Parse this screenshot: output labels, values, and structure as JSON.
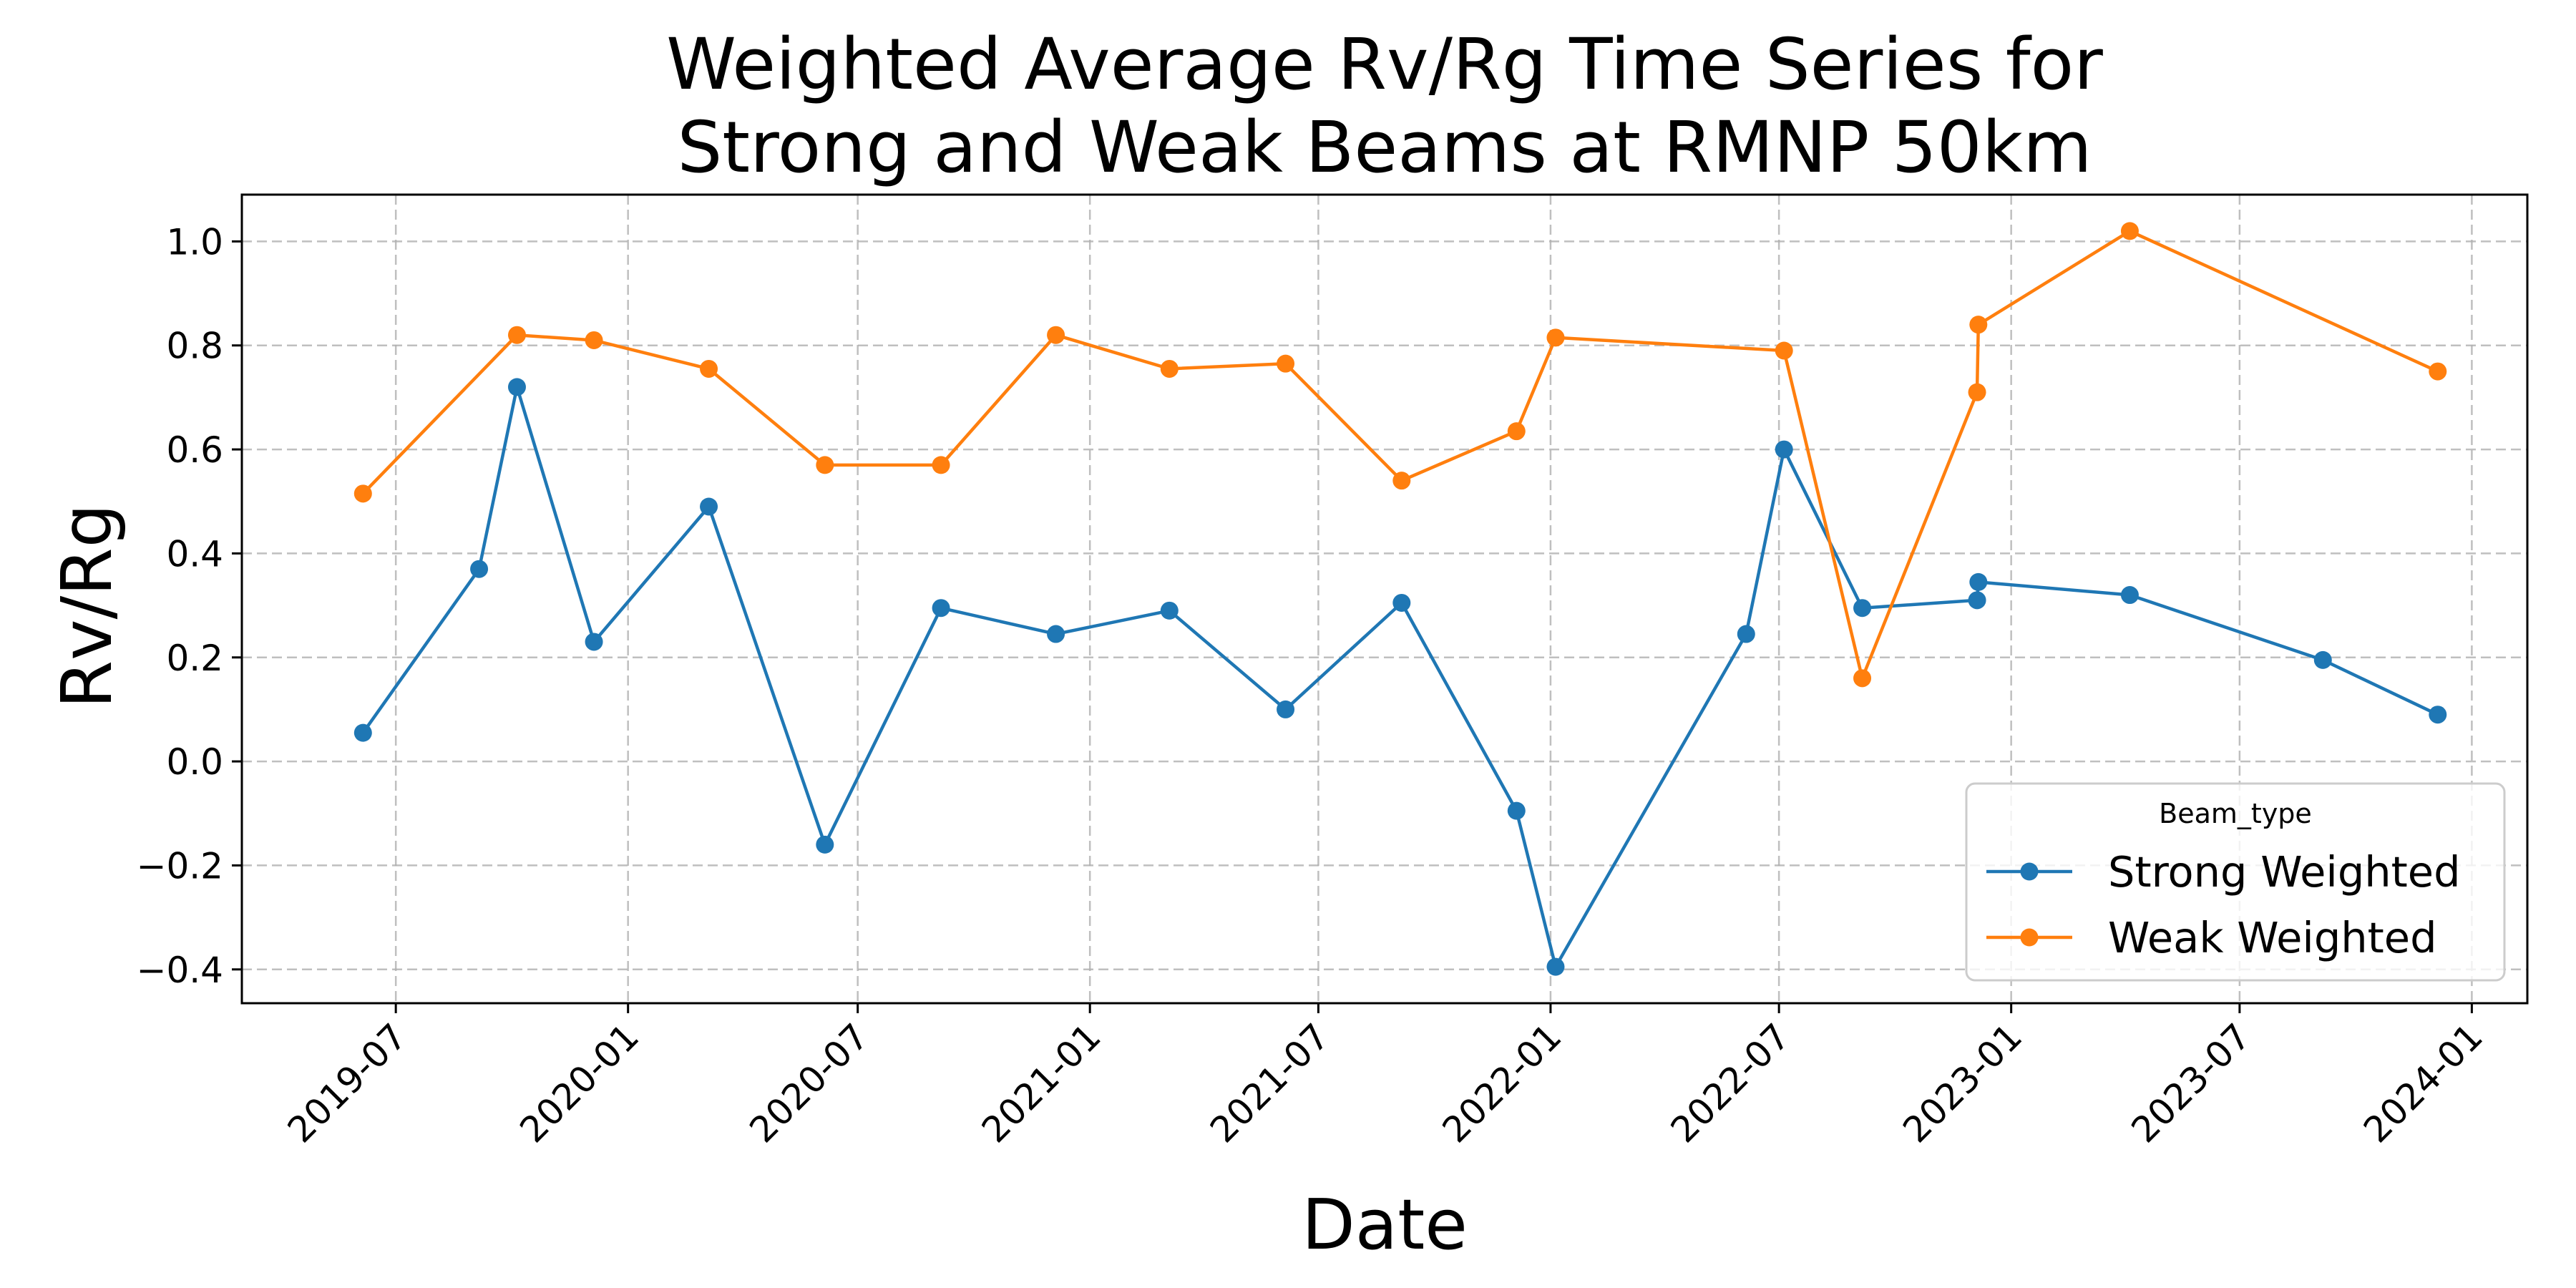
{
  "chart_data": {
    "type": "line",
    "title_lines": [
      "Weighted Average Rv/Rg Time Series for",
      "Strong and Weak Beams at RMNP 50km"
    ],
    "xlabel": "Date",
    "ylabel": "Rv/Rg",
    "xlim": [
      "2019-03-01",
      "2024-02-14"
    ],
    "ylim": [
      -0.465,
      1.09
    ],
    "x_ticks": [
      {
        "date": "2019-07-01",
        "label": "2019-07"
      },
      {
        "date": "2020-01-01",
        "label": "2020-01"
      },
      {
        "date": "2020-07-01",
        "label": "2020-07"
      },
      {
        "date": "2021-01-01",
        "label": "2021-01"
      },
      {
        "date": "2021-07-01",
        "label": "2021-07"
      },
      {
        "date": "2022-01-01",
        "label": "2022-01"
      },
      {
        "date": "2022-07-01",
        "label": "2022-07"
      },
      {
        "date": "2023-01-01",
        "label": "2023-01"
      },
      {
        "date": "2023-07-01",
        "label": "2023-07"
      },
      {
        "date": "2024-01-01",
        "label": "2024-01"
      }
    ],
    "y_ticks": [
      {
        "value": -0.4,
        "label": "−0.4"
      },
      {
        "value": -0.2,
        "label": "−0.2"
      },
      {
        "value": 0.0,
        "label": "0.0"
      },
      {
        "value": 0.2,
        "label": "0.2"
      },
      {
        "value": 0.4,
        "label": "0.4"
      },
      {
        "value": 0.6,
        "label": "0.6"
      },
      {
        "value": 0.8,
        "label": "0.8"
      },
      {
        "value": 1.0,
        "label": "1.0"
      }
    ],
    "grid": true,
    "legend": {
      "title": "Beam_type",
      "position": "lower-right"
    },
    "series": [
      {
        "name": "Strong Weighted",
        "color": "#1f77b4",
        "points": [
          {
            "x": "2019-06-05",
            "y": 0.055
          },
          {
            "x": "2019-09-05",
            "y": 0.37
          },
          {
            "x": "2019-10-05",
            "y": 0.72
          },
          {
            "x": "2019-12-05",
            "y": 0.23
          },
          {
            "x": "2020-03-05",
            "y": 0.49
          },
          {
            "x": "2020-06-05",
            "y": -0.16
          },
          {
            "x": "2020-09-05",
            "y": 0.295
          },
          {
            "x": "2020-12-05",
            "y": 0.245
          },
          {
            "x": "2021-03-05",
            "y": 0.29
          },
          {
            "x": "2021-06-05",
            "y": 0.1
          },
          {
            "x": "2021-09-05",
            "y": 0.305
          },
          {
            "x": "2021-12-05",
            "y": -0.095
          },
          {
            "x": "2022-01-05",
            "y": -0.395
          },
          {
            "x": "2022-06-05",
            "y": 0.245
          },
          {
            "x": "2022-07-05",
            "y": 0.6
          },
          {
            "x": "2022-09-05",
            "y": 0.295
          },
          {
            "x": "2022-12-05",
            "y": 0.31
          },
          {
            "x": "2022-12-06",
            "y": 0.345
          },
          {
            "x": "2023-04-05",
            "y": 0.32
          },
          {
            "x": "2023-09-05",
            "y": 0.195
          },
          {
            "x": "2023-12-05",
            "y": 0.09
          }
        ]
      },
      {
        "name": "Weak Weighted",
        "color": "#ff7f0e",
        "points": [
          {
            "x": "2019-06-05",
            "y": 0.515
          },
          {
            "x": "2019-10-05",
            "y": 0.82
          },
          {
            "x": "2019-12-05",
            "y": 0.81
          },
          {
            "x": "2020-03-05",
            "y": 0.755
          },
          {
            "x": "2020-06-05",
            "y": 0.57
          },
          {
            "x": "2020-09-05",
            "y": 0.57
          },
          {
            "x": "2020-12-05",
            "y": 0.82
          },
          {
            "x": "2021-03-05",
            "y": 0.755
          },
          {
            "x": "2021-06-05",
            "y": 0.765
          },
          {
            "x": "2021-09-05",
            "y": 0.54
          },
          {
            "x": "2021-12-05",
            "y": 0.635
          },
          {
            "x": "2022-01-05",
            "y": 0.815
          },
          {
            "x": "2022-07-05",
            "y": 0.79
          },
          {
            "x": "2022-09-05",
            "y": 0.16
          },
          {
            "x": "2022-12-05",
            "y": 0.71
          },
          {
            "x": "2022-12-06",
            "y": 0.84
          },
          {
            "x": "2023-04-05",
            "y": 1.02
          },
          {
            "x": "2023-12-05",
            "y": 0.75
          }
        ]
      }
    ]
  }
}
